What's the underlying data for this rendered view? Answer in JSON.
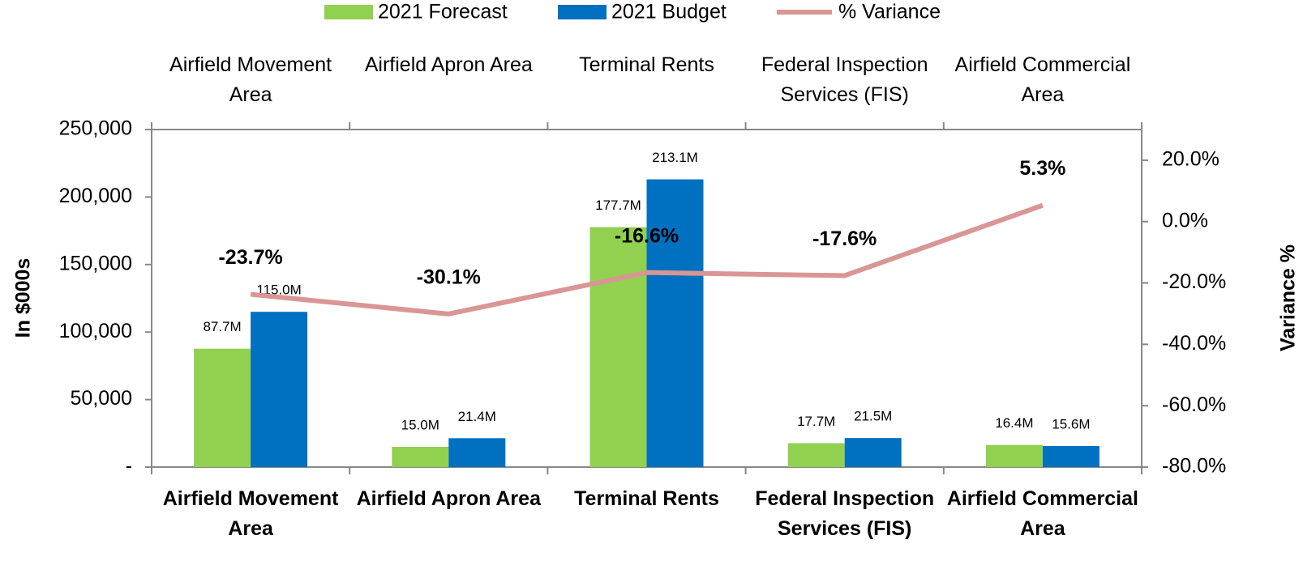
{
  "chart_data": {
    "type": "bar",
    "categories": [
      "Airfield Movement Area",
      "Airfield Apron Area",
      "Terminal Rents",
      "Federal Inspection Services (FIS)",
      "Airfield Commercial Area"
    ],
    "series": [
      {
        "name": "2021 Forecast",
        "color": "#92d050",
        "values": [
          87700,
          15000,
          177700,
          17700,
          16400
        ],
        "value_labels": [
          "87.7M",
          "15.0M",
          "177.7M",
          "17.7M",
          "16.4M"
        ]
      },
      {
        "name": "2021 Budget",
        "color": "#0070c0",
        "values": [
          115000,
          21400,
          213100,
          21500,
          15600
        ],
        "value_labels": [
          "115.0M",
          "21.4M",
          "213.1M",
          "21.5M",
          "15.6M"
        ]
      },
      {
        "name": "% Variance",
        "type": "line",
        "axis": "y2",
        "color": "#d99694",
        "values": [
          -23.7,
          -30.1,
          -16.6,
          -17.6,
          5.3
        ],
        "value_labels": [
          "-23.7%",
          "-30.1%",
          "-16.6%",
          "-17.6%",
          "5.3%"
        ]
      }
    ],
    "ylabel": "In $000s",
    "y2label": "Variance %",
    "ylim": [
      0,
      250000
    ],
    "yticks": [
      {
        "value": 0,
        "label": "-"
      },
      {
        "value": 50000,
        "label": "50,000"
      },
      {
        "value": 100000,
        "label": "100,000"
      },
      {
        "value": 150000,
        "label": "150,000"
      },
      {
        "value": 200000,
        "label": "200,000"
      },
      {
        "value": 250000,
        "label": "250,000"
      }
    ],
    "y2lim": [
      -80,
      30
    ],
    "y2ticks": [
      {
        "value": -80,
        "label": "-80.0%"
      },
      {
        "value": -60,
        "label": "-60.0%"
      },
      {
        "value": -40,
        "label": "-40.0%"
      },
      {
        "value": -20,
        "label": "-20.0%"
      },
      {
        "value": 0,
        "label": "0.0%"
      },
      {
        "value": 20,
        "label": "20.0%"
      }
    ],
    "legend": "top"
  }
}
